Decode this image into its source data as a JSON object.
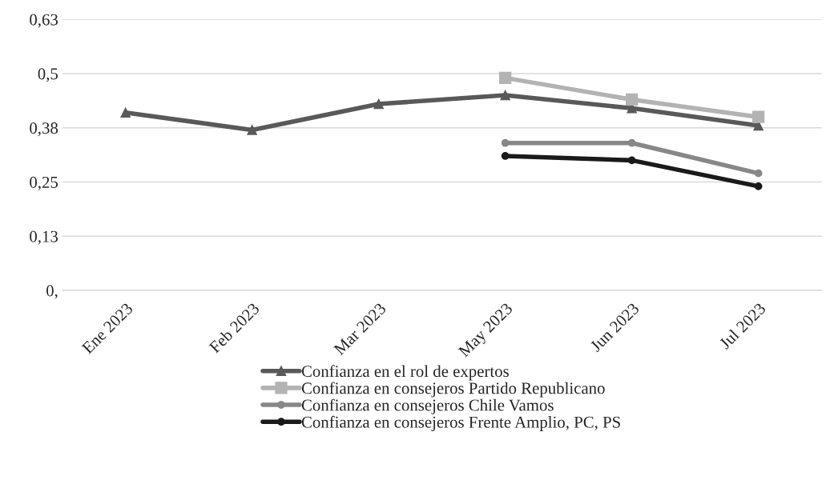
{
  "chart_data": {
    "type": "line",
    "categories": [
      "Ene 2023",
      "Feb 2023",
      "Mar 2023",
      "May 2023",
      "Jun 2023",
      "Jul 2023"
    ],
    "series": [
      {
        "name": "Confianza en el rol de expertos",
        "color": "#595959",
        "marker": "triangle",
        "values": [
          0.41,
          0.37,
          0.43,
          0.45,
          0.42,
          0.38
        ]
      },
      {
        "name": "Confianza en consejeros Partido Republicano",
        "color": "#b3b3b3",
        "marker": "square",
        "values": [
          null,
          null,
          null,
          0.49,
          0.44,
          0.4
        ]
      },
      {
        "name": "Confianza en consejeros Chile Vamos",
        "color": "#878787",
        "marker": "circle",
        "values": [
          null,
          null,
          null,
          0.34,
          0.34,
          0.27
        ]
      },
      {
        "name": "Confianza en consejeros Frente Amplio, PC, PS",
        "color": "#1a1a1a",
        "marker": "circle",
        "values": [
          null,
          null,
          null,
          0.31,
          0.3,
          0.24
        ]
      }
    ],
    "ylim": [
      0,
      0.625
    ],
    "yticks": [
      {
        "value": 0,
        "label": "0,"
      },
      {
        "value": 0.125,
        "label": "0,13"
      },
      {
        "value": 0.25,
        "label": "0,25"
      },
      {
        "value": 0.375,
        "label": "0,38"
      },
      {
        "value": 0.5,
        "label": "0,5"
      },
      {
        "value": 0.625,
        "label": "0,63"
      }
    ],
    "grid": "y",
    "legend": "bottom",
    "line_style": "solid"
  }
}
